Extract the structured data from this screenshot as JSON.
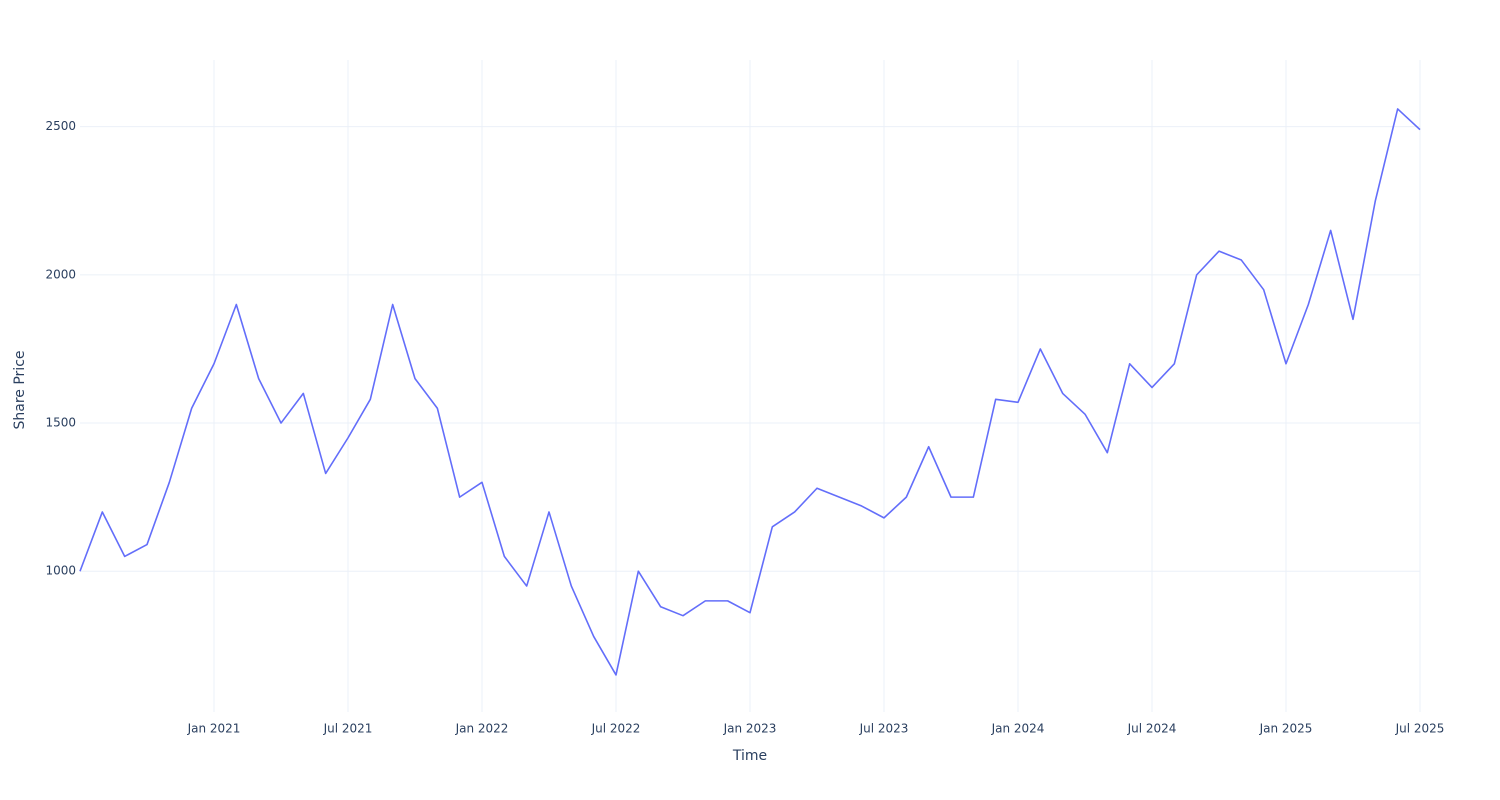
{
  "chart_data": {
    "type": "line",
    "x_label": "Time",
    "y_label": "Share Price",
    "x": [
      "2020-07",
      "2020-08",
      "2020-09",
      "2020-10",
      "2020-11",
      "2020-12",
      "2021-01",
      "2021-02",
      "2021-03",
      "2021-04",
      "2021-05",
      "2021-06",
      "2021-07",
      "2021-08",
      "2021-09",
      "2021-10",
      "2021-11",
      "2021-12",
      "2022-01",
      "2022-02",
      "2022-03",
      "2022-04",
      "2022-05",
      "2022-06",
      "2022-07",
      "2022-08",
      "2022-09",
      "2022-10",
      "2022-11",
      "2022-12",
      "2023-01",
      "2023-02",
      "2023-03",
      "2023-04",
      "2023-05",
      "2023-06",
      "2023-07",
      "2023-08",
      "2023-09",
      "2023-10",
      "2023-11",
      "2023-12",
      "2024-01",
      "2024-02",
      "2024-03",
      "2024-04",
      "2024-05",
      "2024-06",
      "2024-07",
      "2024-08",
      "2024-09",
      "2024-10",
      "2024-11",
      "2024-12",
      "2025-01",
      "2025-02",
      "2025-03",
      "2025-04",
      "2025-05",
      "2025-06",
      "2025-07"
    ],
    "series": [
      {
        "name": "Share Price",
        "color": "#636efa",
        "values": [
          1000,
          1200,
          1050,
          1090,
          1300,
          1550,
          1700,
          1900,
          1650,
          1500,
          1600,
          1330,
          1450,
          1580,
          1900,
          1650,
          1550,
          1250,
          1300,
          1050,
          950,
          1200,
          950,
          780,
          650,
          1000,
          880,
          850,
          900,
          900,
          860,
          1150,
          1200,
          1280,
          1250,
          1220,
          1180,
          1250,
          1420,
          1250,
          1250,
          1580,
          1570,
          1750,
          1600,
          1530,
          1400,
          1700,
          1620,
          1700,
          2000,
          2080,
          2050,
          1950,
          1700,
          1900,
          2150,
          1850,
          2250,
          2560,
          2490
        ]
      }
    ],
    "xlim": [
      "2020-07",
      "2025-07"
    ],
    "xticks": [
      {
        "value": "2021-01",
        "label": "Jan 2021"
      },
      {
        "value": "2021-07",
        "label": "Jul 2021"
      },
      {
        "value": "2022-01",
        "label": "Jan 2022"
      },
      {
        "value": "2022-07",
        "label": "Jul 2022"
      },
      {
        "value": "2023-01",
        "label": "Jan 2023"
      },
      {
        "value": "2023-07",
        "label": "Jul 2023"
      },
      {
        "value": "2024-01",
        "label": "Jan 2024"
      },
      {
        "value": "2024-07",
        "label": "Jul 2024"
      },
      {
        "value": "2025-01",
        "label": "Jan 2025"
      },
      {
        "value": "2025-07",
        "label": "Jul 2025"
      }
    ],
    "ylim": [
      525,
      2725
    ],
    "yticks": [
      1000,
      1500,
      2000,
      2500
    ],
    "grid": true
  }
}
